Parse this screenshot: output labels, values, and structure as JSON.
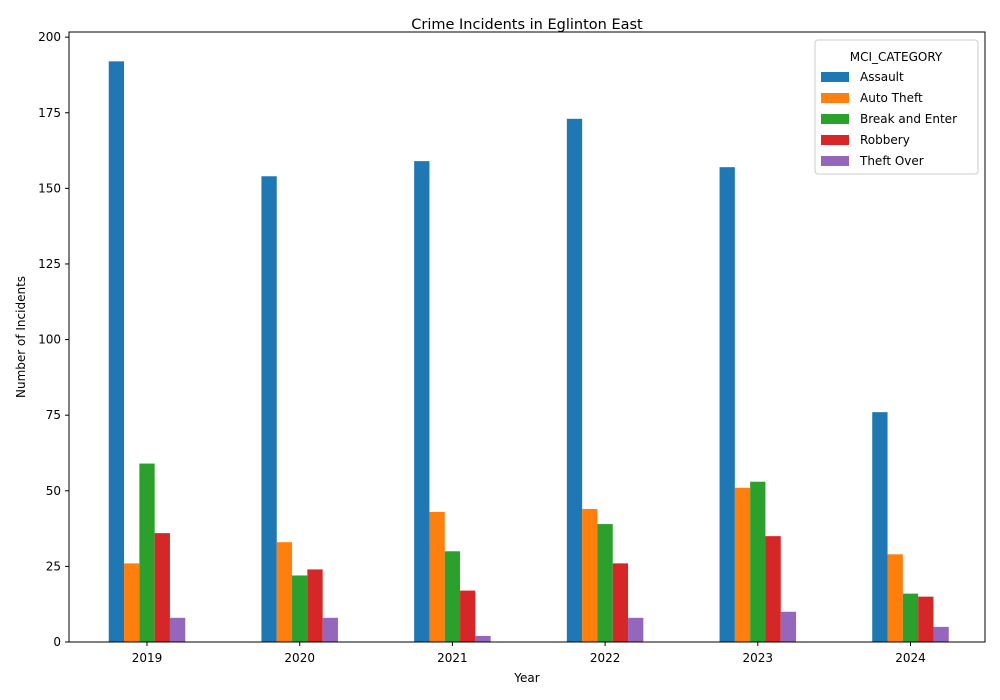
{
  "chart_data": {
    "type": "bar",
    "title": "Crime Incidents in Eglinton East",
    "xlabel": "Year",
    "ylabel": "Number of Incidents",
    "categories": [
      "2019",
      "2020",
      "2021",
      "2022",
      "2023",
      "2024"
    ],
    "ylim": [
      0,
      201.7
    ],
    "yticks": [
      0,
      25,
      50,
      75,
      100,
      125,
      150,
      175,
      200
    ],
    "grid": false,
    "legend": {
      "title": "MCI_CATEGORY",
      "placement": "top-right"
    },
    "series": [
      {
        "name": "Assault",
        "color": "#1f77b4",
        "values": [
          192,
          154,
          159,
          173,
          157,
          76
        ]
      },
      {
        "name": "Auto Theft",
        "color": "#ff7f0e",
        "values": [
          26,
          33,
          43,
          44,
          51,
          29
        ]
      },
      {
        "name": "Break and Enter",
        "color": "#2ca02c",
        "values": [
          59,
          22,
          30,
          39,
          53,
          16
        ]
      },
      {
        "name": "Robbery",
        "color": "#d62728",
        "values": [
          36,
          24,
          17,
          26,
          35,
          15
        ]
      },
      {
        "name": "Theft Over",
        "color": "#9467bd",
        "values": [
          8,
          8,
          2,
          8,
          10,
          5
        ]
      }
    ]
  }
}
